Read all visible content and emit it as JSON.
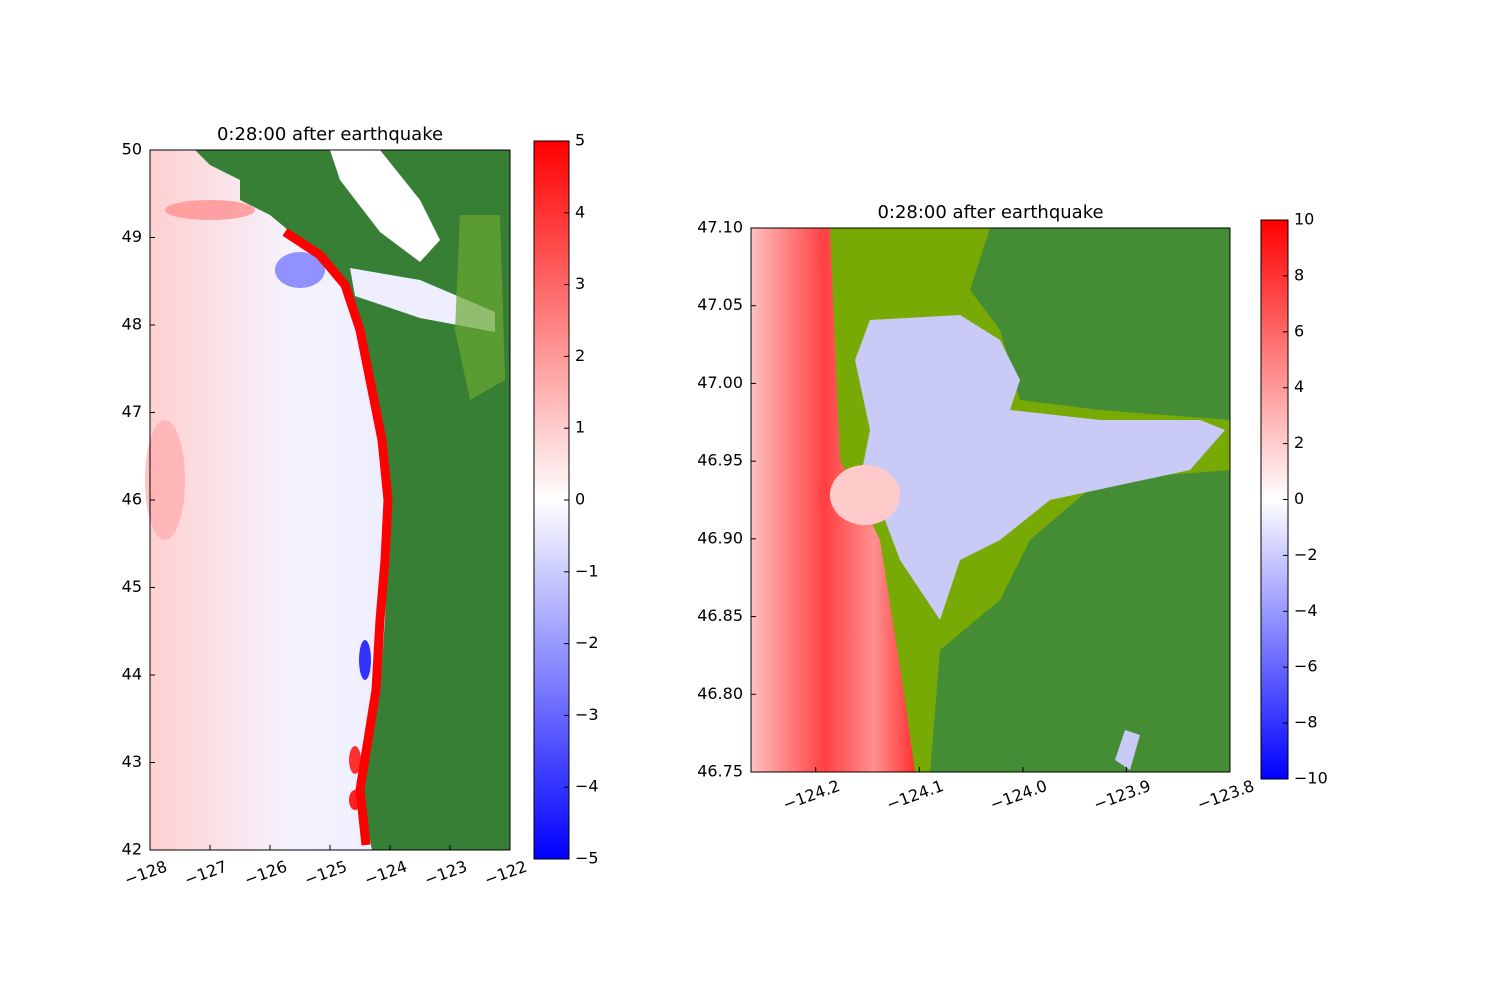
{
  "chart_data": [
    {
      "type": "heatmap",
      "title": "0:28:00 after earthquake",
      "xlim": [
        -128,
        -122
      ],
      "ylim": [
        42,
        50
      ],
      "xticks": [
        {
          "value": -128,
          "label": "−128"
        },
        {
          "value": -127,
          "label": "−127"
        },
        {
          "value": -126,
          "label": "−126"
        },
        {
          "value": -125,
          "label": "−125"
        },
        {
          "value": -124,
          "label": "−124"
        },
        {
          "value": -123,
          "label": "−123"
        },
        {
          "value": -122,
          "label": "−122"
        }
      ],
      "yticks": [
        42,
        43,
        44,
        45,
        46,
        47,
        48,
        49,
        50
      ],
      "colorbar": {
        "lim": [
          -5,
          5
        ],
        "colors": [
          "#0000ff",
          "#ffffff",
          "#ff0000"
        ],
        "ticks": [
          {
            "value": -5,
            "label": "−5"
          },
          {
            "value": -4,
            "label": "−4"
          },
          {
            "value": -3,
            "label": "−3"
          },
          {
            "value": -2,
            "label": "−2"
          },
          {
            "value": -1,
            "label": "−1"
          },
          0,
          1,
          2,
          3,
          4,
          5
        ]
      }
    },
    {
      "type": "heatmap",
      "title": "0:28:00 after earthquake",
      "xlim": [
        -124.2625,
        -123.8
      ],
      "ylim": [
        46.75,
        47.1
      ],
      "xticks": [
        {
          "value": -124.2,
          "label": "−124.2"
        },
        {
          "value": -124.1,
          "label": "−124.1"
        },
        {
          "value": -124.0,
          "label": "−124.0"
        },
        {
          "value": -123.9,
          "label": "−123.9"
        },
        {
          "value": -123.8,
          "label": "−123.8"
        }
      ],
      "yticks": [
        46.75,
        {
          "value": 46.8,
          "label": "46.80"
        },
        46.85,
        {
          "value": 46.9,
          "label": "46.90"
        },
        46.95,
        {
          "value": 47.0,
          "label": "47.00"
        },
        47.05,
        {
          "value": 47.1,
          "label": "47.10"
        }
      ],
      "colorbar": {
        "lim": [
          -10,
          10
        ],
        "colors": [
          "#0000ff",
          "#ffffff",
          "#ff0000"
        ],
        "ticks": [
          {
            "value": -10,
            "label": "−10"
          },
          {
            "value": -8,
            "label": "−8"
          },
          {
            "value": -6,
            "label": "−6"
          },
          {
            "value": -4,
            "label": "−4"
          },
          {
            "value": -2,
            "label": "−2"
          },
          0,
          2,
          4,
          6,
          8,
          10
        ]
      }
    }
  ]
}
